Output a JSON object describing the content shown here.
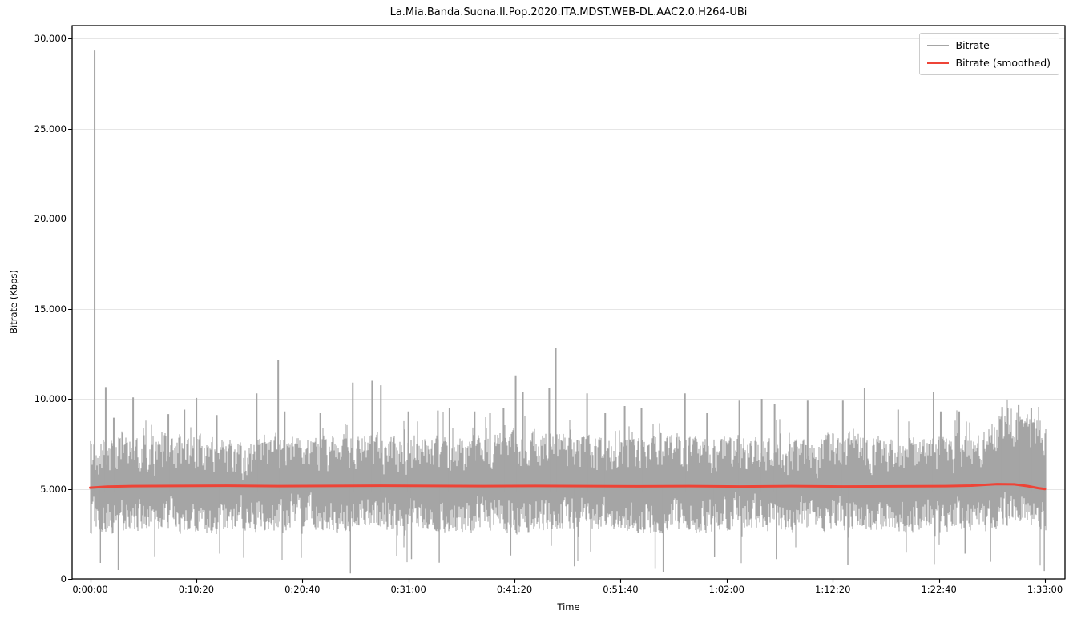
{
  "chart_data": {
    "type": "line",
    "title": "La.Mia.Banda.Suona.Il.Pop.2020.ITA.MDST.WEB-DL.AAC2.0.H264-UBi",
    "xlabel": "Time",
    "ylabel": "Bitrate (Kbps)",
    "x_tick_labels": [
      "0:00:00",
      "0:10:20",
      "0:20:40",
      "0:31:00",
      "0:41:20",
      "0:51:40",
      "1:02:00",
      "1:12:20",
      "1:22:40",
      "1:33:00"
    ],
    "x_tick_seconds": [
      0,
      620,
      1240,
      1860,
      2480,
      3100,
      3720,
      4340,
      4960,
      5580
    ],
    "y_tick_labels": [
      "0",
      "5.000",
      "10.000",
      "15.000",
      "20.000",
      "25.000",
      "30.000"
    ],
    "y_tick_values": [
      0,
      5000,
      10000,
      15000,
      20000,
      25000,
      30000
    ],
    "x_range_seconds": [
      0,
      5580
    ],
    "ylim": [
      0,
      30700
    ],
    "grid": "horizontal-only",
    "grid_color": "#e6e6e6",
    "spine_color": "#000000",
    "legend_position": "upper-right",
    "series": [
      {
        "name": "Bitrate",
        "color": "#a5a5a5",
        "style": "raw-noise-band",
        "texture_seed": 42,
        "envelope": {
          "t": [
            0,
            180,
            360,
            540,
            720,
            900,
            1080,
            1260,
            1440,
            1620,
            1800,
            1980,
            2160,
            2340,
            2520,
            2700,
            2880,
            3060,
            3240,
            3420,
            3600,
            3780,
            3960,
            4140,
            4320,
            4500,
            4680,
            4860,
            5040,
            5200,
            5300,
            5420,
            5540,
            5580
          ],
          "top": [
            7900,
            8100,
            7800,
            8300,
            8000,
            7700,
            8200,
            7900,
            8100,
            8400,
            7900,
            8200,
            8000,
            8300,
            8500,
            8300,
            8100,
            7800,
            8000,
            8200,
            7900,
            8100,
            8000,
            7800,
            8200,
            8300,
            7900,
            8100,
            7900,
            8200,
            9200,
            9400,
            9100,
            8600
          ],
          "bottom": [
            2500,
            2300,
            2700,
            2400,
            2200,
            2600,
            2400,
            2800,
            2300,
            2600,
            2500,
            2700,
            2300,
            2600,
            2400,
            2600,
            2500,
            2700,
            2300,
            2600,
            2400,
            2700,
            2500,
            2400,
            2600,
            2500,
            2300,
            2600,
            2500,
            2400,
            2700,
            2900,
            2700,
            2600
          ]
        },
        "peaks": [
          [
            26,
            29330
          ],
          [
            91,
            10650
          ],
          [
            138,
            8950
          ],
          [
            251,
            10080
          ],
          [
            457,
            9150
          ],
          [
            551,
            9400
          ],
          [
            621,
            10050
          ],
          [
            740,
            9100
          ],
          [
            973,
            10300
          ],
          [
            1099,
            12150
          ],
          [
            1137,
            9300
          ],
          [
            1345,
            9200
          ],
          [
            1535,
            10900
          ],
          [
            1648,
            11000
          ],
          [
            1699,
            10750
          ],
          [
            1860,
            9300
          ],
          [
            2032,
            9350
          ],
          [
            2100,
            9500
          ],
          [
            2247,
            9300
          ],
          [
            2337,
            9200
          ],
          [
            2416,
            9500
          ],
          [
            2487,
            11300
          ],
          [
            2529,
            10400
          ],
          [
            2683,
            10600
          ],
          [
            2721,
            12820
          ],
          [
            2904,
            10300
          ],
          [
            3010,
            9200
          ],
          [
            3124,
            9600
          ],
          [
            3222,
            9500
          ],
          [
            3476,
            10300
          ],
          [
            3605,
            9200
          ],
          [
            3794,
            9900
          ],
          [
            3925,
            10000
          ],
          [
            4000,
            9700
          ],
          [
            4193,
            9900
          ],
          [
            4399,
            9900
          ],
          [
            4526,
            10600
          ],
          [
            4722,
            9400
          ],
          [
            4929,
            10400
          ],
          [
            4971,
            9300
          ],
          [
            5079,
            9300
          ],
          [
            5330,
            9550
          ],
          [
            5426,
            9650
          ],
          [
            5500,
            9500
          ]
        ],
        "dips": [
          [
            60,
            890
          ],
          [
            164,
            490
          ],
          [
            757,
            1400
          ],
          [
            1521,
            300
          ],
          [
            1878,
            1100
          ],
          [
            2040,
            900
          ],
          [
            2458,
            1300
          ],
          [
            2830,
            700
          ],
          [
            3302,
            600
          ],
          [
            3349,
            400
          ],
          [
            3649,
            1200
          ],
          [
            4010,
            1100
          ],
          [
            4428,
            800
          ],
          [
            4769,
            1500
          ],
          [
            5113,
            1400
          ],
          [
            5262,
            950
          ],
          [
            5576,
            440
          ]
        ]
      },
      {
        "name": "Bitrate (smoothed)",
        "color": "#ee4437",
        "style": "smoothed-line",
        "points": [
          [
            0,
            5060
          ],
          [
            100,
            5120
          ],
          [
            250,
            5150
          ],
          [
            500,
            5160
          ],
          [
            800,
            5170
          ],
          [
            1100,
            5150
          ],
          [
            1400,
            5160
          ],
          [
            1700,
            5170
          ],
          [
            2000,
            5160
          ],
          [
            2300,
            5150
          ],
          [
            2600,
            5160
          ],
          [
            2900,
            5150
          ],
          [
            3200,
            5140
          ],
          [
            3500,
            5150
          ],
          [
            3800,
            5130
          ],
          [
            4100,
            5150
          ],
          [
            4400,
            5130
          ],
          [
            4700,
            5140
          ],
          [
            5000,
            5150
          ],
          [
            5150,
            5180
          ],
          [
            5300,
            5260
          ],
          [
            5400,
            5250
          ],
          [
            5480,
            5150
          ],
          [
            5540,
            5040
          ],
          [
            5580,
            4990
          ]
        ]
      }
    ]
  }
}
